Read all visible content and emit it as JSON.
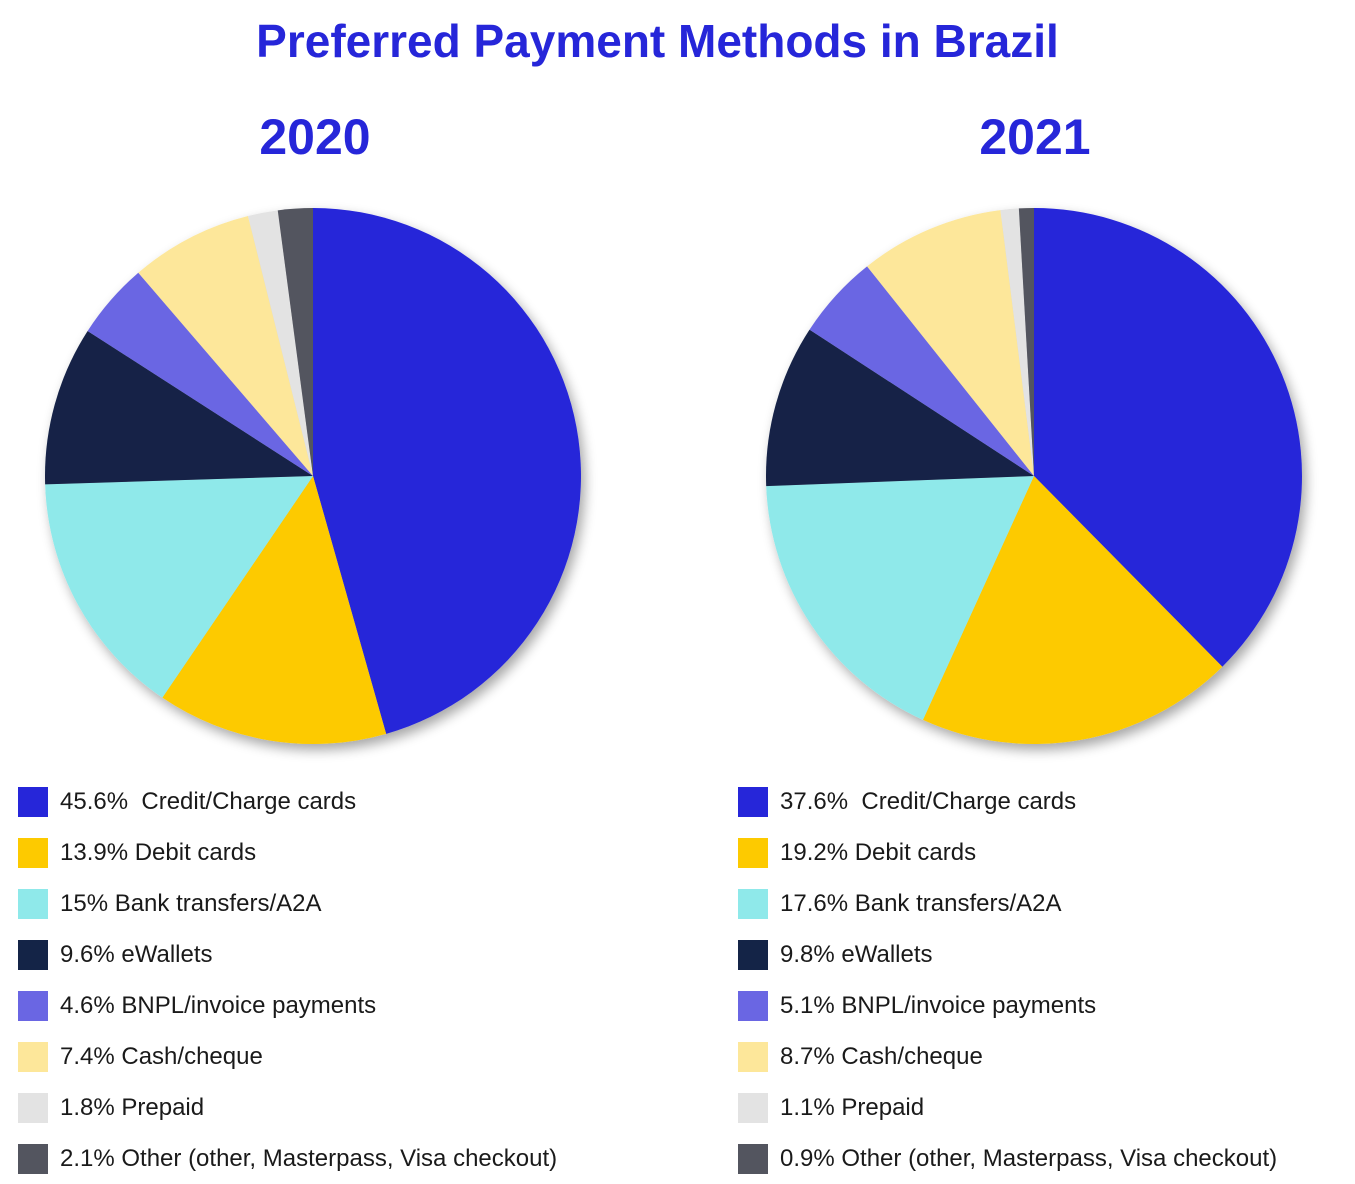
{
  "title": "Preferred Payment Methods in Brazil",
  "chart_data": [
    {
      "type": "pie",
      "title": "2020",
      "series": [
        {
          "label": "45.6%  Credit/Charge cards",
          "category": "Credit/Charge cards",
          "value": 45.6,
          "color": "#2626d9"
        },
        {
          "label": "13.9% Debit cards",
          "category": "Debit cards",
          "value": 13.9,
          "color": "#fdca00"
        },
        {
          "label": "15% Bank transfers/A2A",
          "category": "Bank transfers/A2A",
          "value": 15,
          "color": "#8fe9ea"
        },
        {
          "label": "9.6% eWallets",
          "category": "eWallets",
          "value": 9.6,
          "color": "#142447"
        },
        {
          "label": "4.6% BNPL/invoice payments",
          "category": "BNPL/invoice payments",
          "value": 4.6,
          "color": "#6a66e3"
        },
        {
          "label": "7.4% Cash/cheque",
          "category": "Cash/cheque",
          "value": 7.4,
          "color": "#fde79a"
        },
        {
          "label": "1.8% Prepaid",
          "category": "Prepaid",
          "value": 1.8,
          "color": "#e3e3e3"
        },
        {
          "label": "2.1% Other (other, Masterpass, Visa checkout)",
          "category": "Other (other, Masterpass, Visa checkout)",
          "value": 2.1,
          "color": "#53555f"
        }
      ]
    },
    {
      "type": "pie",
      "title": "2021",
      "series": [
        {
          "label": "37.6%  Credit/Charge cards",
          "category": "Credit/Charge cards",
          "value": 37.6,
          "color": "#2626d9"
        },
        {
          "label": "19.2% Debit cards",
          "category": "Debit cards",
          "value": 19.2,
          "color": "#fdca00"
        },
        {
          "label": "17.6% Bank transfers/A2A",
          "category": "Bank transfers/A2A",
          "value": 17.6,
          "color": "#8fe9ea"
        },
        {
          "label": "9.8% eWallets",
          "category": "eWallets",
          "value": 9.8,
          "color": "#142447"
        },
        {
          "label": "5.1% BNPL/invoice payments",
          "category": "BNPL/invoice payments",
          "value": 5.1,
          "color": "#6a66e3"
        },
        {
          "label": "8.7% Cash/cheque",
          "category": "Cash/cheque",
          "value": 8.7,
          "color": "#fde79a"
        },
        {
          "label": "1.1% Prepaid",
          "category": "Prepaid",
          "value": 1.1,
          "color": "#e3e3e3"
        },
        {
          "label": "0.9% Other (other, Masterpass, Visa checkout)",
          "category": "Other (other, Masterpass, Visa checkout)",
          "value": 0.9,
          "color": "#53555f"
        }
      ]
    }
  ]
}
